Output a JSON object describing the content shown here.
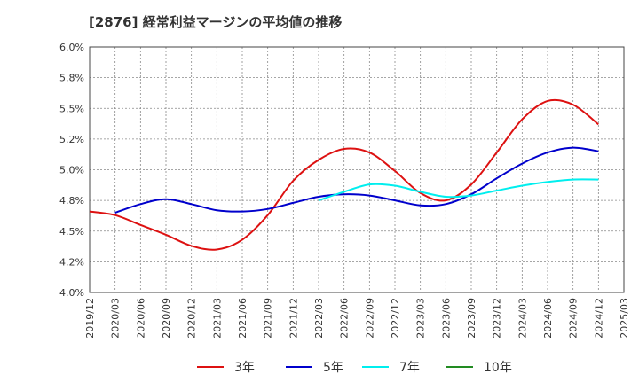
{
  "chart_data": {
    "type": "line",
    "title": "[2876]  経常利益マージンの平均値の推移",
    "x_ticks": [
      "2019/12",
      "2020/03",
      "2020/06",
      "2020/09",
      "2020/12",
      "2021/03",
      "2021/06",
      "2021/09",
      "2021/12",
      "2022/03",
      "2022/06",
      "2022/09",
      "2022/12",
      "2023/03",
      "2023/06",
      "2023/09",
      "2023/12",
      "2024/03",
      "2024/06",
      "2024/09",
      "2024/12",
      "2025/03"
    ],
    "y_ticks": [
      "6.0%",
      "5.8%",
      "5.5%",
      "5.2%",
      "5.0%",
      "4.8%",
      "4.5%",
      "4.2%",
      "4.0%"
    ],
    "y_tick_values": [
      6.0,
      5.75,
      5.5,
      5.25,
      5.0,
      4.75,
      4.5,
      4.25,
      4.0
    ],
    "ylim": [
      4.0,
      6.0
    ],
    "grid": true,
    "legend_position": "bottom",
    "series": [
      {
        "name": "3年",
        "color": "#dd1111",
        "x": [
          "2019/12",
          "2020/03",
          "2020/06",
          "2020/09",
          "2020/12",
          "2021/03",
          "2021/06",
          "2021/09",
          "2021/12",
          "2022/03",
          "2022/06",
          "2022/09",
          "2022/12",
          "2023/03",
          "2023/06",
          "2023/09",
          "2023/12",
          "2024/03",
          "2024/06",
          "2024/09",
          "2024/12"
        ],
        "values": [
          4.66,
          4.63,
          4.55,
          4.47,
          4.38,
          4.35,
          4.43,
          4.63,
          4.91,
          5.08,
          5.17,
          5.14,
          4.99,
          4.81,
          4.75,
          4.88,
          5.14,
          5.41,
          5.56,
          5.53,
          5.37
        ]
      },
      {
        "name": "5年",
        "color": "#0000cc",
        "x": [
          "2020/03",
          "2020/06",
          "2020/09",
          "2020/12",
          "2021/03",
          "2021/06",
          "2021/09",
          "2021/12",
          "2022/03",
          "2022/06",
          "2022/09",
          "2022/12",
          "2023/03",
          "2023/06",
          "2023/09",
          "2023/12",
          "2024/03",
          "2024/06",
          "2024/09",
          "2024/12"
        ],
        "values": [
          4.65,
          4.72,
          4.76,
          4.72,
          4.67,
          4.66,
          4.68,
          4.73,
          4.78,
          4.8,
          4.79,
          4.75,
          4.71,
          4.72,
          4.8,
          4.93,
          5.05,
          5.14,
          5.18,
          5.15
        ]
      },
      {
        "name": "7年",
        "color": "#00eeee",
        "x": [
          "2022/03",
          "2022/06",
          "2022/09",
          "2022/12",
          "2023/03",
          "2023/06",
          "2023/09",
          "2023/12",
          "2024/03",
          "2024/06",
          "2024/09",
          "2024/12"
        ],
        "values": [
          4.75,
          4.82,
          4.88,
          4.87,
          4.82,
          4.78,
          4.79,
          4.83,
          4.87,
          4.9,
          4.92,
          4.92
        ]
      },
      {
        "name": "10年",
        "color": "#228b22",
        "x": [],
        "values": []
      }
    ]
  }
}
